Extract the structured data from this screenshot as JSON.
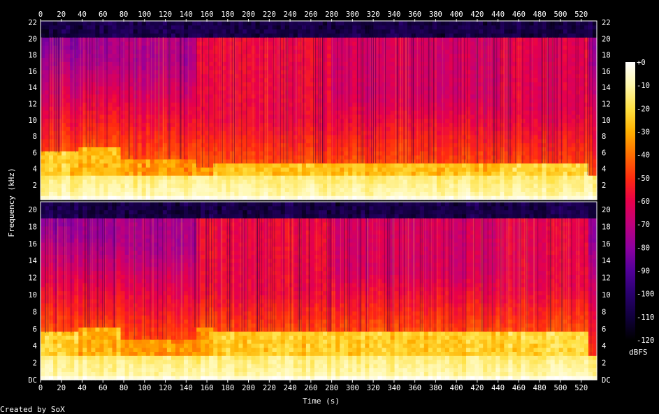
{
  "credit": "Created by SoX",
  "chart_data": {
    "type": "heatmap",
    "xlabel": "Time (s)",
    "ylabel": "Frequency (kHz)",
    "xlim": [
      0,
      535
    ],
    "x_ticks": [
      0,
      20,
      40,
      60,
      80,
      100,
      120,
      140,
      160,
      180,
      200,
      220,
      240,
      260,
      280,
      300,
      320,
      340,
      360,
      380,
      400,
      420,
      440,
      460,
      480,
      500,
      520
    ],
    "panels": [
      {
        "y_ticks": [
          "22",
          "20",
          "18",
          "16",
          "14",
          "12",
          "10",
          "8",
          "6",
          "4",
          "2"
        ],
        "ylim_khz": [
          0,
          22
        ],
        "content_top_khz": 20,
        "segments": [
          {
            "x0": 0,
            "x1": 37,
            "floor_khz": 5.8,
            "base": 0.8,
            "hf": 0.06
          },
          {
            "x0": 37,
            "x1": 78,
            "floor_khz": 6.5,
            "base": 0.76,
            "hf": 0.1
          },
          {
            "x0": 78,
            "x1": 148,
            "floor_khz": 5.0,
            "base": 0.72,
            "hf": 0.12
          },
          {
            "x0": 148,
            "x1": 168,
            "floor_khz": 4.0,
            "base": 0.7,
            "hf": 0.24
          },
          {
            "x0": 168,
            "x1": 278,
            "floor_khz": 4.5,
            "base": 0.78,
            "hf": 0.26
          },
          {
            "x0": 278,
            "x1": 443,
            "floor_khz": 4.5,
            "base": 0.78,
            "hf": 0.2
          },
          {
            "x0": 443,
            "x1": 525,
            "floor_khz": 4.5,
            "base": 0.82,
            "hf": 0.24
          },
          {
            "x0": 525,
            "x1": 535,
            "floor_khz": 3.0,
            "base": 0.72,
            "hf": 0.1
          }
        ]
      },
      {
        "y_ticks": [
          "20",
          "18",
          "16",
          "14",
          "12",
          "10",
          "8",
          "6",
          "4",
          "2",
          "DC"
        ],
        "ylim_khz": [
          0,
          22
        ],
        "content_top_khz": 20,
        "segments": [
          {
            "x0": 0,
            "x1": 37,
            "floor_khz": 5.8,
            "base": 0.8,
            "hf": 0.06
          },
          {
            "x0": 37,
            "x1": 78,
            "floor_khz": 6.5,
            "base": 0.76,
            "hf": 0.1
          },
          {
            "x0": 78,
            "x1": 148,
            "floor_khz": 5.0,
            "base": 0.72,
            "hf": 0.12
          },
          {
            "x0": 148,
            "x1": 168,
            "floor_khz": 6.5,
            "base": 0.72,
            "hf": 0.26
          },
          {
            "x0": 168,
            "x1": 278,
            "floor_khz": 6.0,
            "base": 0.8,
            "hf": 0.26
          },
          {
            "x0": 278,
            "x1": 443,
            "floor_khz": 6.0,
            "base": 0.8,
            "hf": 0.2
          },
          {
            "x0": 443,
            "x1": 525,
            "floor_khz": 6.0,
            "base": 0.82,
            "hf": 0.24
          },
          {
            "x0": 525,
            "x1": 535,
            "floor_khz": 3.0,
            "base": 0.72,
            "hf": 0.1
          }
        ]
      }
    ],
    "colorbar": {
      "unit": "dBFS",
      "range": [
        -120,
        0
      ],
      "ticks": [
        "+0",
        "-10",
        "-20",
        "-30",
        "-40",
        "-50",
        "-60",
        "-70",
        "-80",
        "-90",
        "-100",
        "-110",
        "-120"
      ],
      "colors": [
        "#000000",
        "#10003a",
        "#2a0070",
        "#52009a",
        "#8c00a0",
        "#c0007a",
        "#e8004a",
        "#ff2a10",
        "#ff7000",
        "#ffb000",
        "#ffe040",
        "#fff8b0",
        "#ffffff"
      ]
    }
  }
}
